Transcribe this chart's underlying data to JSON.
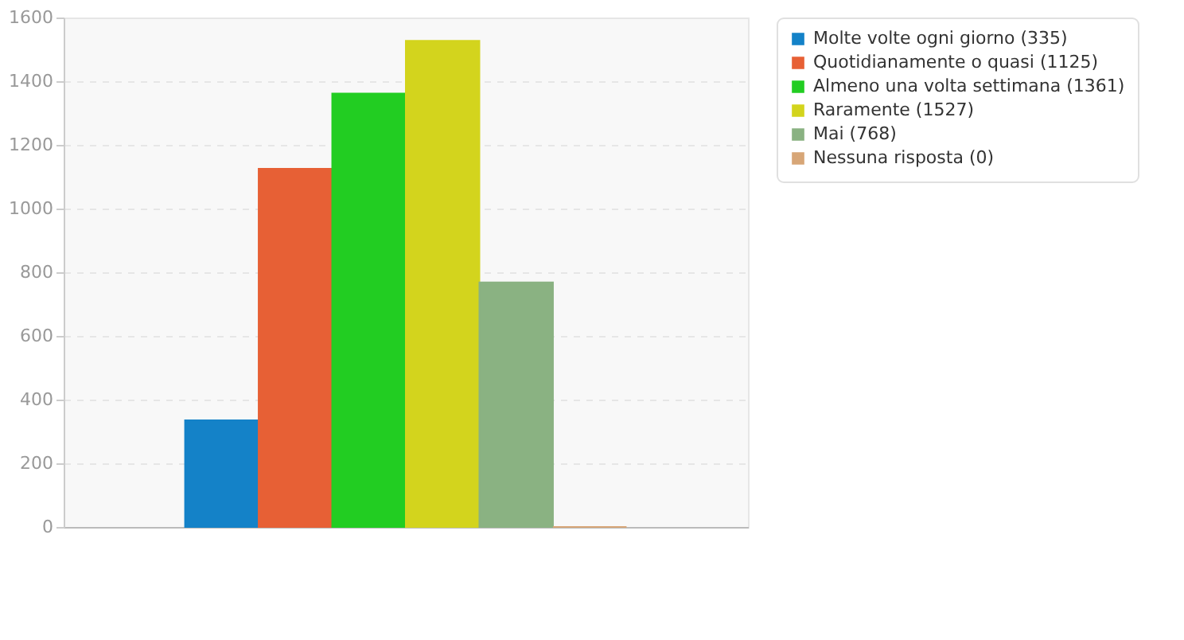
{
  "chart_data": {
    "type": "bar",
    "categories": [
      null
    ],
    "series": [
      {
        "name": "Molte volte ogni giorno (335)",
        "color": "#1482c8",
        "values": [
          335
        ]
      },
      {
        "name": "Quotidianamente o quasi (1125)",
        "color": "#e76035",
        "values": [
          1125
        ]
      },
      {
        "name": "Almeno una volta settimana (1361)",
        "color": "#22cd22",
        "values": [
          1361
        ]
      },
      {
        "name": "Raramente (1527)",
        "color": "#d3d41d",
        "values": [
          1527
        ]
      },
      {
        "name": "Mai (768)",
        "color": "#8ab282",
        "values": [
          768
        ]
      },
      {
        "name": "Nessuna risposta (0)",
        "color": "#d7a677",
        "values": [
          0
        ]
      }
    ],
    "ylim": [
      0,
      1600
    ],
    "yticks": [
      0,
      200,
      400,
      600,
      800,
      1000,
      1200,
      1400,
      1600
    ],
    "grid": "y",
    "legend": "right",
    "tick_labels": "y"
  }
}
